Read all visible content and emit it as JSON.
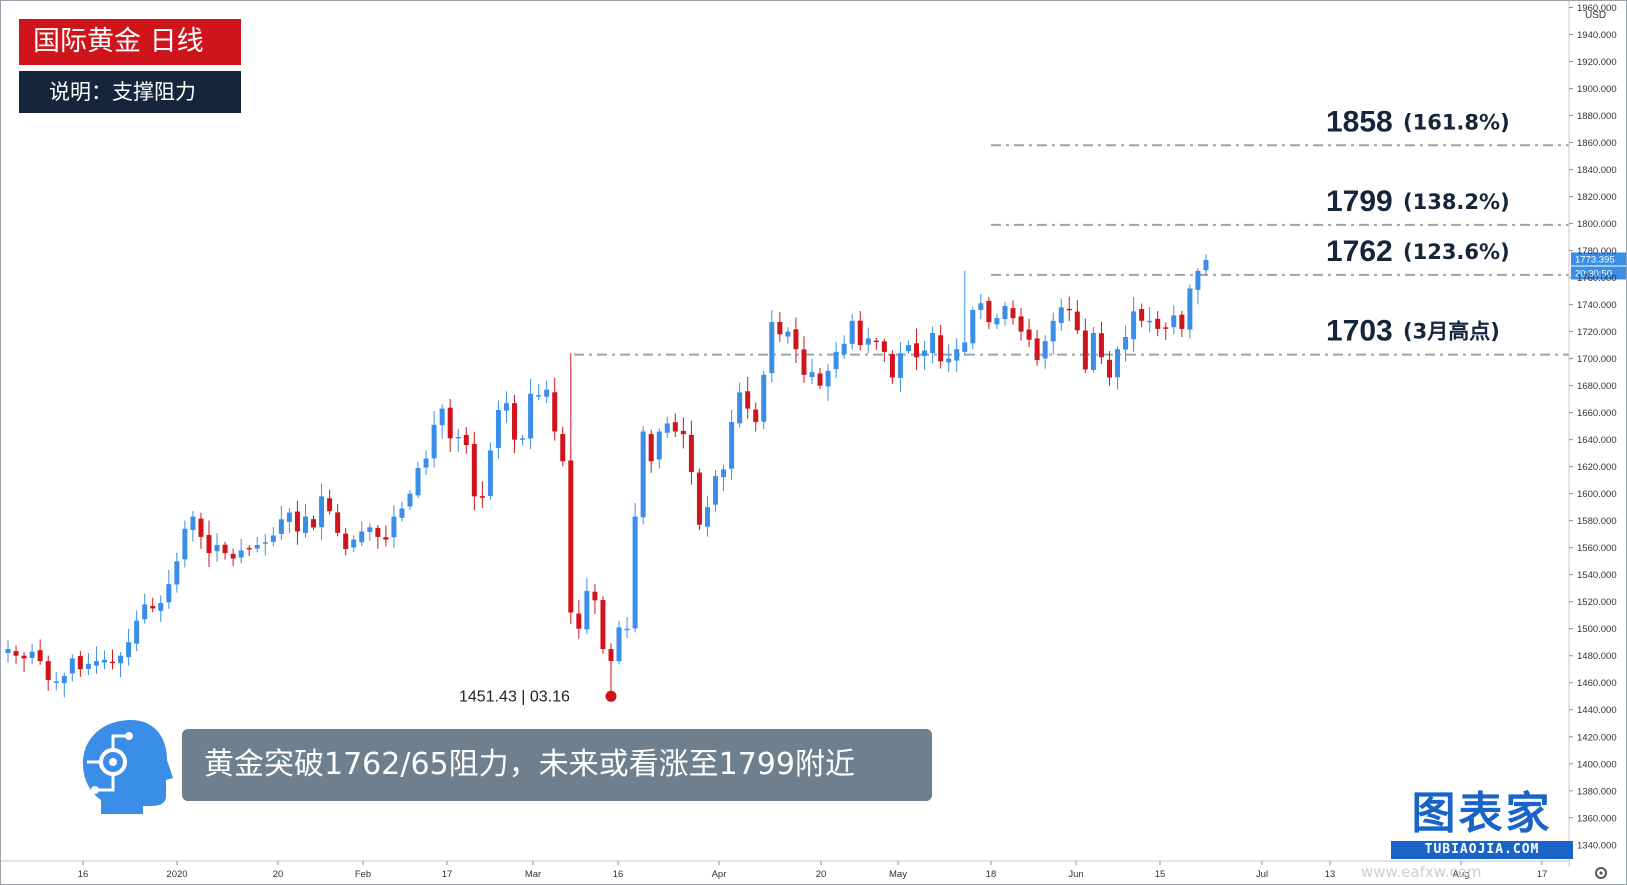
{
  "header": {
    "title": "国际黄金  日线",
    "subtitle": "说明：支撑阻力"
  },
  "caption": "黄金突破1762/65阻力，未来或看涨至1799附近",
  "brand": {
    "name": "图表家",
    "url": "TUBIAOJIA.COM"
  },
  "watermark": "www.eafxw.com",
  "colors": {
    "up": "#3b8ee8",
    "down": "#d0141c",
    "level_line": "#9ea3a8",
    "title_bg": "#d0141c",
    "desc_bg": "#14253c",
    "brand": "#1a63c9",
    "caption_bg": "#6e7f8e"
  },
  "icons": {
    "logo": "robot-head-icon",
    "settings": "settings-icon"
  },
  "chart_data": {
    "type": "candlestick",
    "currency": "USD",
    "y_ticks": [
      1340,
      1360,
      1380,
      1400,
      1420,
      1440,
      1460,
      1480,
      1500,
      1520,
      1540,
      1560,
      1580,
      1600,
      1620,
      1640,
      1660,
      1680,
      1700,
      1720,
      1740,
      1760,
      1780,
      1800,
      1820,
      1840,
      1860,
      1880,
      1900,
      1920,
      1940,
      1960
    ],
    "ylim": [
      1328,
      1970
    ],
    "x_ticks": [
      "16",
      "2020",
      "20",
      "Feb",
      "17",
      "Mar",
      "16",
      "Apr",
      "20",
      "May",
      "18",
      "Jun",
      "15",
      "Jul",
      "13",
      "Aug",
      "17"
    ],
    "current_price": "1773.395",
    "countdown": "20:30:50",
    "levels": [
      {
        "price": 1858,
        "label": "1858",
        "note": "(161.8%)"
      },
      {
        "price": 1799,
        "label": "1799",
        "note": "(138.2%)"
      },
      {
        "price": 1762,
        "label": "1762",
        "note": "(123.6%)"
      },
      {
        "price": 1703,
        "label": "1703",
        "note": "(3月高点)"
      }
    ],
    "low_marker": {
      "price": 1451.43,
      "label": "1451.43 | 03.16"
    },
    "closes": [
      1485,
      1480,
      1478,
      1483,
      1476,
      1462,
      1461,
      1465,
      1478,
      1470,
      1474,
      1476,
      1477,
      1475,
      1480,
      1490,
      1506,
      1518,
      1515,
      1519,
      1533,
      1550,
      1574,
      1583,
      1568,
      1556,
      1562,
      1556,
      1552,
      1558,
      1559,
      1562,
      1564,
      1569,
      1581,
      1586,
      1572,
      1583,
      1575,
      1598,
      1587,
      1571,
      1559,
      1566,
      1572,
      1575,
      1568,
      1566,
      1583,
      1589,
      1600,
      1619,
      1626,
      1651,
      1663,
      1641,
      1642,
      1636,
      1598,
      1597,
      1632,
      1662,
      1667,
      1640,
      1641,
      1674,
      1673,
      1677,
      1646,
      1624,
      1512,
      1500,
      1528,
      1521,
      1485,
      1476,
      1501,
      1500,
      1583,
      1646,
      1624,
      1646,
      1652,
      1646,
      1644,
      1616,
      1577,
      1590,
      1613,
      1618,
      1653,
      1675,
      1663,
      1653,
      1688,
      1727,
      1718,
      1720,
      1707,
      1688,
      1690,
      1680,
      1691,
      1705,
      1711,
      1728,
      1710,
      1715,
      1713,
      1705,
      1686,
      1704,
      1710,
      1701,
      1706,
      1719,
      1698,
      1700,
      1707,
      1712,
      1736,
      1741,
      1727,
      1730,
      1739,
      1730,
      1720,
      1714,
      1699,
      1713,
      1728,
      1738,
      1736,
      1721,
      1692,
      1719,
      1701,
      1686,
      1707,
      1716,
      1735,
      1728,
      1728,
      1722,
      1723,
      1732,
      1722,
      1752,
      1765,
      1773
    ]
  }
}
